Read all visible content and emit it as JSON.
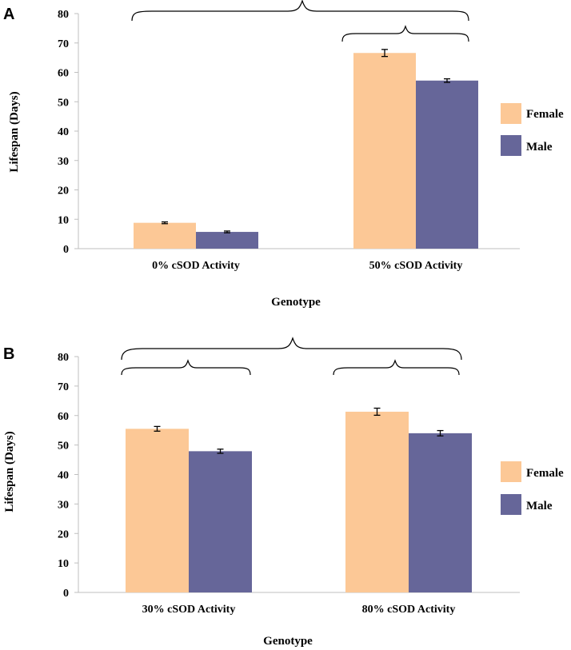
{
  "colors": {
    "female": "#fcc896",
    "male": "#666699"
  },
  "chart_data": [
    {
      "panel": "A",
      "type": "bar",
      "categories": [
        "0% cSOD Activity",
        "50% cSOD Activity"
      ],
      "series": [
        {
          "name": "Female",
          "values": [
            8.8,
            66.6
          ],
          "errors": [
            0.3,
            1.2
          ]
        },
        {
          "name": "Male",
          "values": [
            5.7,
            57.2
          ],
          "errors": [
            0.3,
            0.6
          ]
        }
      ],
      "xlabel": "Genotype",
      "ylabel": "Lifespan (Days)",
      "ylim": [
        0,
        80
      ],
      "yticks": [
        "0",
        "10",
        "20",
        "30",
        "40",
        "50",
        "60",
        "70",
        "80"
      ],
      "legend": [
        "Female",
        "Male"
      ],
      "legend_position": "right",
      "grid": false
    },
    {
      "panel": "B",
      "type": "bar",
      "categories": [
        "30% cSOD Activity",
        "80% cSOD Activity"
      ],
      "series": [
        {
          "name": "Female",
          "values": [
            55.5,
            61.3
          ],
          "errors": [
            0.8,
            1.2
          ]
        },
        {
          "name": "Male",
          "values": [
            47.9,
            54.0
          ],
          "errors": [
            0.7,
            0.9
          ]
        }
      ],
      "xlabel": "Genotype",
      "ylabel": "Lifespan (Days)",
      "ylim": [
        0,
        80
      ],
      "yticks": [
        "0",
        "10",
        "20",
        "30",
        "40",
        "50",
        "60",
        "70",
        "80"
      ],
      "legend": [
        "Female",
        "Male"
      ],
      "legend_position": "right",
      "grid": false
    }
  ]
}
